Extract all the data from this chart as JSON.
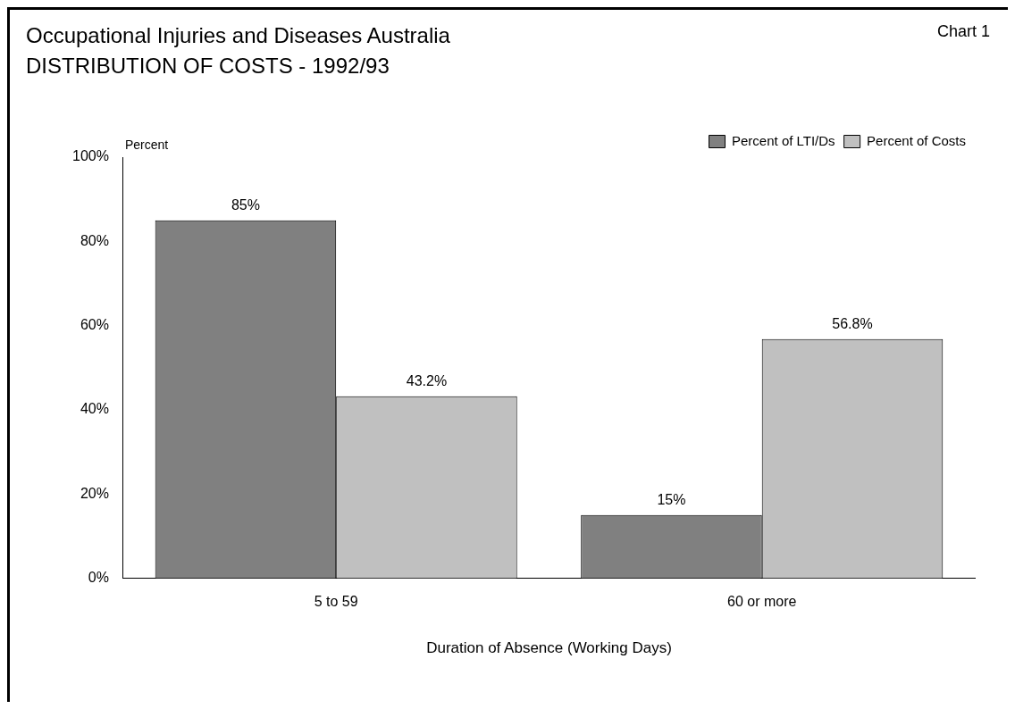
{
  "chart_data": {
    "type": "bar",
    "title": "Occupational Injuries and Diseases Australia",
    "subtitle": "DISTRIBUTION OF COSTS - 1992/93",
    "annotations": [
      "Chart 1"
    ],
    "xlabel": "Duration of Absence (Working Days)",
    "ylabel": "Percent",
    "categories": [
      "5 to 59",
      "60 or more"
    ],
    "series": [
      {
        "name": "Percent of LTI/Ds",
        "color": "#808080",
        "values": [
          85,
          15
        ],
        "value_labels": [
          "85%",
          "15%"
        ]
      },
      {
        "name": "Percent of Costs",
        "color": "#c0c0c0",
        "values": [
          43.2,
          56.8
        ],
        "value_labels": [
          "43.2%",
          "56.8%"
        ]
      }
    ],
    "ylim": [
      0,
      100
    ],
    "yticks": [
      {
        "value": 0,
        "label": "0%"
      },
      {
        "value": 20,
        "label": "20%"
      },
      {
        "value": 40,
        "label": "40%"
      },
      {
        "value": 60,
        "label": "60%"
      },
      {
        "value": 80,
        "label": "80%"
      },
      {
        "value": 100,
        "label": "100%"
      }
    ],
    "grid": false,
    "legend": "top right"
  }
}
